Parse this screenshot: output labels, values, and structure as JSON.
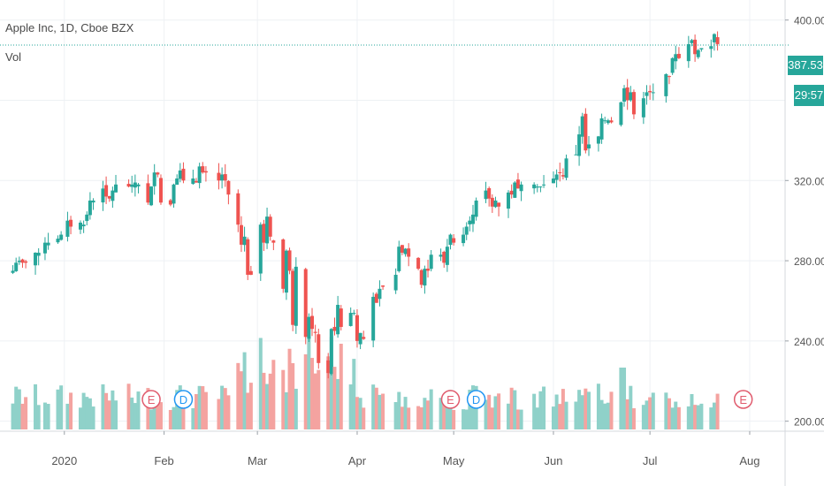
{
  "legend": {
    "title": "Apple Inc, 1D, Cboe BZX",
    "volume": "Vol"
  },
  "price_tag": "387.53",
  "countdown": "29:57",
  "colors": {
    "up": "#26a69a",
    "down": "#ef5350",
    "volume_up": "#8fd1c9",
    "volume_down": "#f4a3a0",
    "grid": "#eef1f4",
    "axis_text": "#555555"
  },
  "events": [
    {
      "letter": "E",
      "date": "2020-01-28",
      "color": "#e05b6d"
    },
    {
      "letter": "D",
      "date": "2020-02-07",
      "color": "#2196f3"
    },
    {
      "letter": "E",
      "date": "2020-04-30",
      "color": "#e05b6d"
    },
    {
      "letter": "D",
      "date": "2020-05-08",
      "color": "#2196f3"
    },
    {
      "letter": "E",
      "date": "2020-07-30",
      "color": "#e05b6d"
    }
  ],
  "chart_data": {
    "type": "candlestick",
    "symbol": "Apple Inc",
    "interval": "1D",
    "exchange": "Cboe BZX",
    "x_tick_labels": [
      "2020",
      "Feb",
      "Mar",
      "Apr",
      "May",
      "Jun",
      "Jul",
      "Aug"
    ],
    "y_tick_labels": [
      "200.00",
      "240.00",
      "280.00",
      "320.00",
      "400.00"
    ],
    "ylim": [
      195,
      410
    ],
    "grid": true,
    "last_price": 387.53,
    "dates": [
      "2019-12-16",
      "2019-12-17",
      "2019-12-18",
      "2019-12-19",
      "2019-12-20",
      "2019-12-23",
      "2019-12-24",
      "2019-12-26",
      "2019-12-27",
      "2019-12-30",
      "2019-12-31",
      "2020-01-02",
      "2020-01-03",
      "2020-01-06",
      "2020-01-07",
      "2020-01-08",
      "2020-01-09",
      "2020-01-10",
      "2020-01-13",
      "2020-01-14",
      "2020-01-15",
      "2020-01-16",
      "2020-01-17",
      "2020-01-21",
      "2020-01-22",
      "2020-01-23",
      "2020-01-24",
      "2020-01-27",
      "2020-01-28",
      "2020-01-29",
      "2020-01-30",
      "2020-01-31",
      "2020-02-03",
      "2020-02-04",
      "2020-02-05",
      "2020-02-06",
      "2020-02-07",
      "2020-02-10",
      "2020-02-11",
      "2020-02-12",
      "2020-02-13",
      "2020-02-14",
      "2020-02-18",
      "2020-02-19",
      "2020-02-20",
      "2020-02-21",
      "2020-02-24",
      "2020-02-25",
      "2020-02-26",
      "2020-02-27",
      "2020-02-28",
      "2020-03-02",
      "2020-03-03",
      "2020-03-04",
      "2020-03-05",
      "2020-03-06",
      "2020-03-09",
      "2020-03-10",
      "2020-03-11",
      "2020-03-12",
      "2020-03-13",
      "2020-03-16",
      "2020-03-17",
      "2020-03-18",
      "2020-03-19",
      "2020-03-20",
      "2020-03-23",
      "2020-03-24",
      "2020-03-25",
      "2020-03-26",
      "2020-03-27",
      "2020-03-30",
      "2020-03-31",
      "2020-04-01",
      "2020-04-02",
      "2020-04-03",
      "2020-04-06",
      "2020-04-07",
      "2020-04-08",
      "2020-04-09",
      "2020-04-13",
      "2020-04-14",
      "2020-04-15",
      "2020-04-16",
      "2020-04-17",
      "2020-04-20",
      "2020-04-21",
      "2020-04-22",
      "2020-04-23",
      "2020-04-24",
      "2020-04-27",
      "2020-04-28",
      "2020-04-29",
      "2020-04-30",
      "2020-05-01",
      "2020-05-04",
      "2020-05-05",
      "2020-05-06",
      "2020-05-07",
      "2020-05-08",
      "2020-05-11",
      "2020-05-12",
      "2020-05-13",
      "2020-05-14",
      "2020-05-15",
      "2020-05-18",
      "2020-05-19",
      "2020-05-20",
      "2020-05-21",
      "2020-05-22",
      "2020-05-26",
      "2020-05-27",
      "2020-05-28",
      "2020-05-29",
      "2020-06-01",
      "2020-06-02",
      "2020-06-03",
      "2020-06-04",
      "2020-06-05",
      "2020-06-08",
      "2020-06-09",
      "2020-06-10",
      "2020-06-11",
      "2020-06-12",
      "2020-06-15",
      "2020-06-16",
      "2020-06-17",
      "2020-06-18",
      "2020-06-19",
      "2020-06-22",
      "2020-06-23",
      "2020-06-24",
      "2020-06-25",
      "2020-06-26",
      "2020-06-29",
      "2020-06-30",
      "2020-07-01",
      "2020-07-02",
      "2020-07-06",
      "2020-07-07",
      "2020-07-08",
      "2020-07-09",
      "2020-07-10",
      "2020-07-13",
      "2020-07-14",
      "2020-07-15",
      "2020-07-16",
      "2020-07-17",
      "2020-07-20",
      "2020-07-21",
      "2020-07-22"
    ],
    "close": [
      275,
      279,
      280,
      279,
      279,
      284,
      284,
      289,
      289,
      291,
      293,
      300,
      297,
      299,
      298,
      303,
      310,
      310,
      316,
      312,
      311,
      315,
      318,
      317,
      318,
      319,
      318,
      309,
      317,
      324,
      323,
      309,
      308,
      318,
      321,
      325,
      320,
      321,
      319,
      327,
      324,
      324,
      320,
      323,
      320,
      313,
      298,
      288,
      292,
      273,
      273,
      298,
      289,
      302,
      292,
      289,
      266,
      285,
      275,
      248,
      277,
      242,
      252,
      246,
      244,
      229,
      224,
      246,
      245,
      258,
      247,
      254,
      254,
      240,
      244,
      241,
      262,
      259,
      266,
      267,
      273,
      287,
      284,
      286,
      282,
      276,
      268,
      276,
      275,
      283,
      283,
      279,
      287,
      293,
      289,
      293,
      297,
      300,
      303,
      310,
      315,
      311,
      307,
      310,
      307,
      314,
      313,
      319,
      316,
      318,
      318,
      317,
      317,
      318,
      321,
      323,
      324,
      322,
      331,
      333,
      343,
      352,
      335,
      338,
      342,
      351,
      350,
      350,
      349,
      359,
      366,
      360,
      364,
      353,
      361,
      364,
      364,
      364,
      373,
      372,
      381,
      383,
      381,
      388,
      390,
      383,
      385,
      386,
      387,
      393,
      388
    ]
  }
}
